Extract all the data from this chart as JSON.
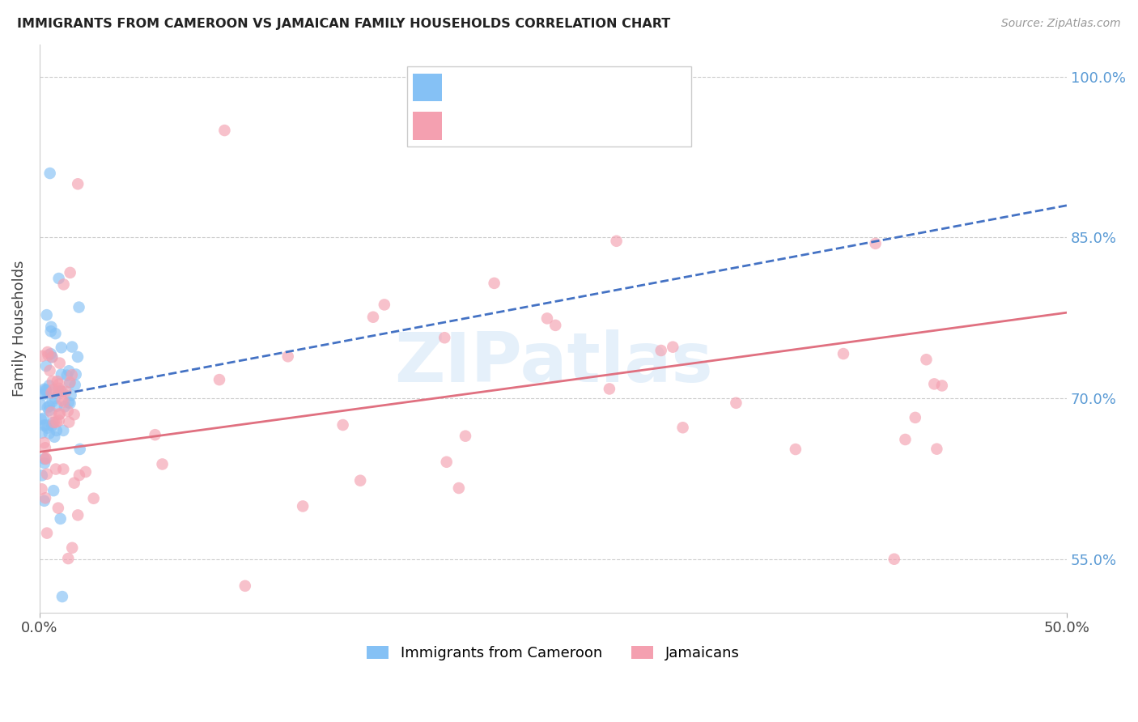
{
  "title": "IMMIGRANTS FROM CAMEROON VS JAMAICAN FAMILY HOUSEHOLDS CORRELATION CHART",
  "source": "Source: ZipAtlas.com",
  "ylabel": "Family Households",
  "legend_label1": "Immigrants from Cameroon",
  "legend_label2": "Jamaicans",
  "watermark": "ZIPatlas",
  "color_blue": "#85C1F5",
  "color_pink": "#F4A0B0",
  "color_blue_line": "#4472C4",
  "color_pink_line": "#E07080",
  "color_axis_labels": "#5B9BD5",
  "xmin": 0.0,
  "xmax": 50.0,
  "ymin": 50.0,
  "ymax": 103.0,
  "blue_line_y0": 70.0,
  "blue_line_y1": 88.0,
  "pink_line_y0": 65.0,
  "pink_line_y1": 78.0,
  "yticks": [
    55.0,
    70.0,
    85.0,
    100.0
  ],
  "figsize": [
    14.06,
    8.92
  ],
  "dpi": 100
}
